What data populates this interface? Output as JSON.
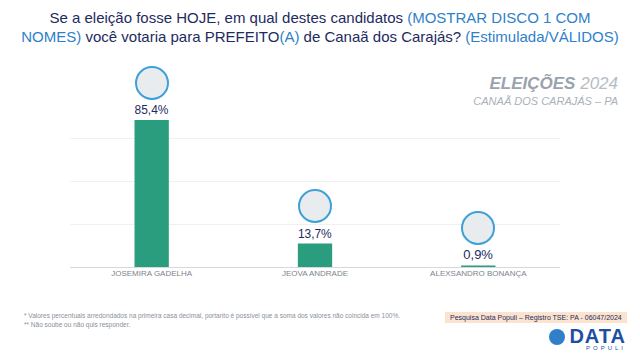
{
  "chart_data": {
    "type": "bar",
    "title": "Se a eleição fosse HOJE, em qual destes candidatos (MOSTRAR DISCO 1 COM NOMES) você votaria para PREFEITO(A) de Canaã dos Carajás? (Estimulada/VÁLIDOS)",
    "categories": [
      "JOSEMIRA GADELHA",
      "JEOVA ANDRADE",
      "ALEXSANDRO BONANÇA"
    ],
    "values": [
      85.4,
      13.7,
      0.9
    ],
    "value_labels": [
      "85,4%",
      "13,7%",
      "0,9%"
    ],
    "color": "#2a9d7f",
    "ylim": [
      0,
      100
    ],
    "yticks": [
      0,
      25,
      50,
      75,
      100
    ],
    "grid": true,
    "data_labels": true,
    "tick_labels": "x"
  },
  "header": {
    "title": "ELEIÇÕES",
    "year": "2024",
    "place": "CANAÃ DOS CARAJÁS – PA"
  },
  "footnotes": [
    "* Valores percentuais arredondados na primeira casa decimal, portanto é possível que a soma dos valores não coincida em 100%.",
    "** Não soube ou não quis responder."
  ],
  "source": "Pesquisa Data Populi – Registro TSE: PA - 06047/2024",
  "logo": {
    "name": "DATA",
    "tagline": "POPULI"
  }
}
